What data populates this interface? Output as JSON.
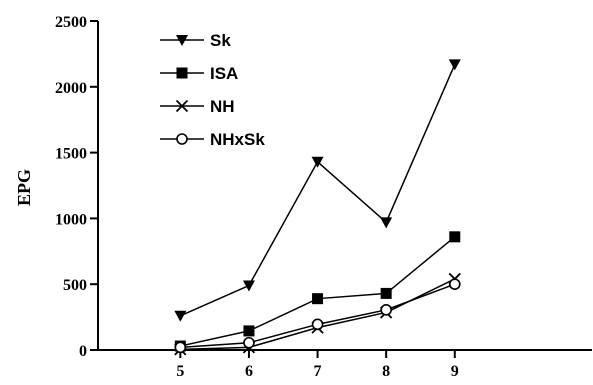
{
  "chart_data": {
    "type": "line",
    "xlabel": "",
    "ylabel": "EPG",
    "x": [
      5,
      6,
      7,
      8,
      9
    ],
    "xlim": [
      3.8,
      11.0
    ],
    "ylim": [
      0,
      2500
    ],
    "yticks": [
      0,
      500,
      1000,
      1500,
      2000,
      2500
    ],
    "grid": false,
    "legend_position": "top-left",
    "series": [
      {
        "name": "Sk",
        "marker": "triangle-down",
        "values": [
          260,
          490,
          1430,
          970,
          2170
        ]
      },
      {
        "name": "ISA",
        "marker": "square",
        "values": [
          30,
          145,
          390,
          430,
          860
        ]
      },
      {
        "name": "NH",
        "marker": "x",
        "values": [
          5,
          20,
          170,
          285,
          540
        ]
      },
      {
        "name": "NHxSk",
        "marker": "circle-open",
        "values": [
          20,
          55,
          195,
          305,
          500
        ]
      }
    ]
  }
}
